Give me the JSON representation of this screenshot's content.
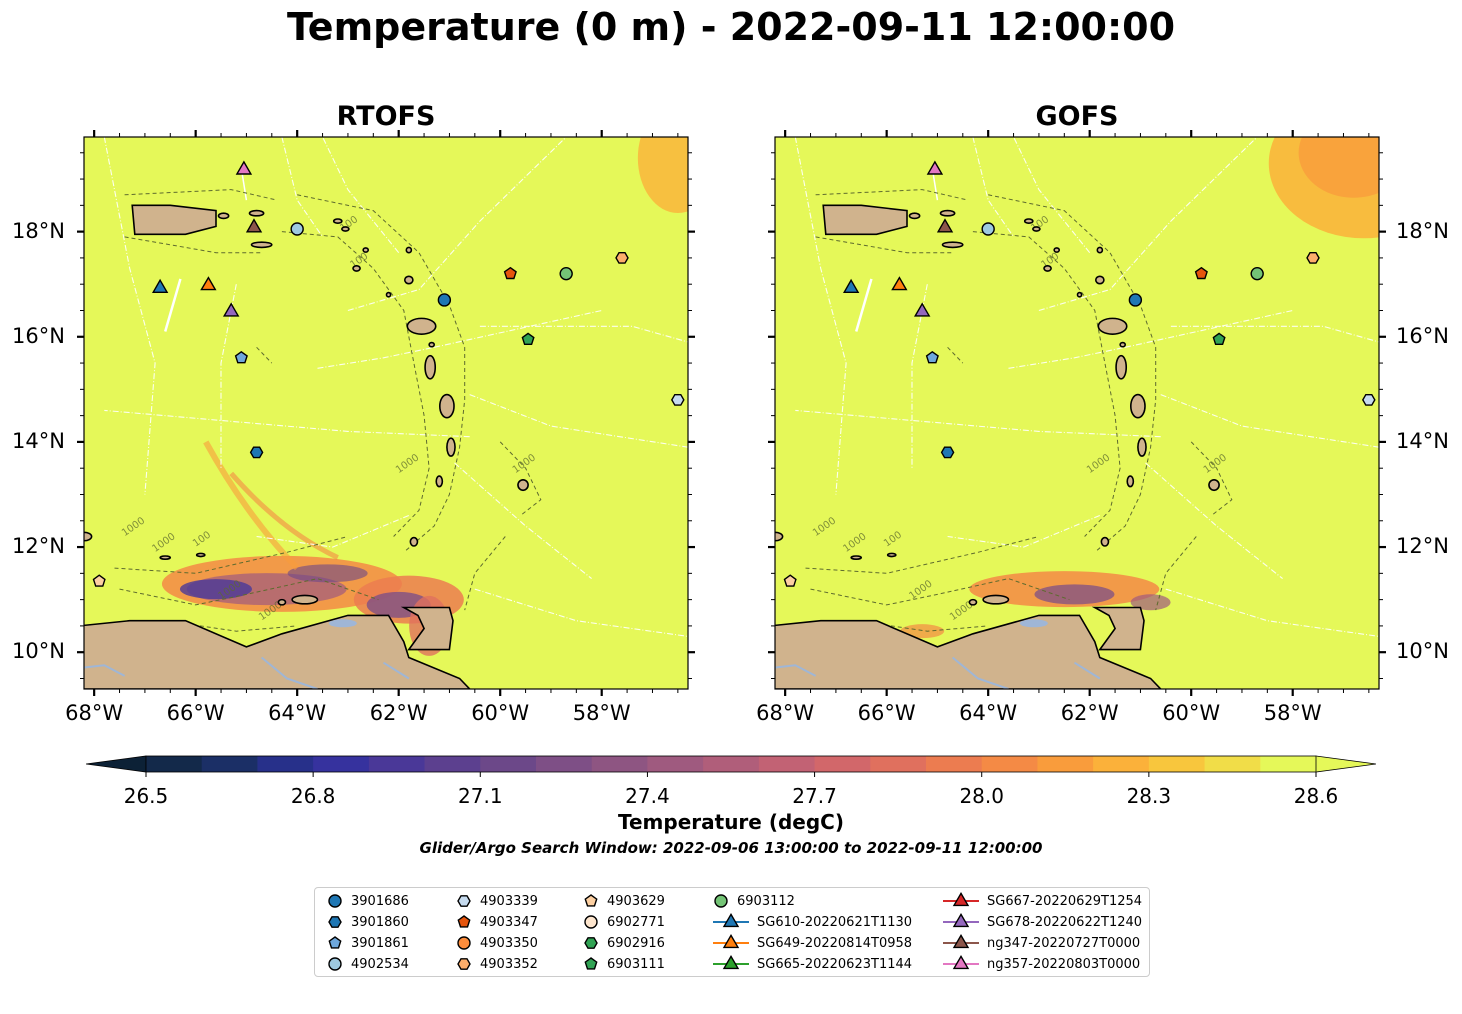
{
  "title": "Temperature (0 m) - 2022-09-11 12:00:00",
  "panels": [
    {
      "id": "rtofs",
      "title": "RTOFS"
    },
    {
      "id": "gofs",
      "title": "GOFS"
    }
  ],
  "map": {
    "lon_range": [
      -68.2,
      -56.3
    ],
    "lat_range": [
      9.3,
      19.8
    ],
    "lon_ticks": [
      -68,
      -66,
      -64,
      -62,
      -60,
      -58
    ],
    "lon_tick_labels": [
      "68°W",
      "66°W",
      "64°W",
      "62°W",
      "60°W",
      "58°W"
    ],
    "lat_ticks": [
      10,
      12,
      14,
      16,
      18
    ],
    "lat_tick_labels": [
      "10°N",
      "12°N",
      "14°N",
      "16°N",
      "18°N"
    ],
    "contour_labels": [
      "100",
      "1000"
    ],
    "colors": {
      "ocean": "#e5f859",
      "land": "#d0b38d",
      "coast": "#000000",
      "bathy": "#5e6b2e",
      "eez": "#ffffff",
      "rivers": "#9fb6d6"
    }
  },
  "colorbar": {
    "label": "Temperature (degC)",
    "min": 26.5,
    "max": 28.6,
    "step": 0.1,
    "ticks": [
      26.5,
      26.8,
      27.1,
      27.4,
      27.7,
      28.0,
      28.3,
      28.6
    ],
    "tick_labels": [
      "26.5",
      "26.8",
      "27.1",
      "27.4",
      "27.7",
      "28.0",
      "28.3",
      "28.6"
    ],
    "extend": "both",
    "colors": [
      "#0c2136",
      "#13294a",
      "#1b2f66",
      "#27308a",
      "#36329e",
      "#4a3898",
      "#5c408f",
      "#6c4889",
      "#7e4f86",
      "#8e5582",
      "#9f5a7f",
      "#b05e7a",
      "#c26274",
      "#d2676a",
      "#e0705e",
      "#ec7c50",
      "#f48a45",
      "#f99c3c",
      "#fbb13a",
      "#f8c63d",
      "#f1dd48",
      "#e5f859"
    ]
  },
  "search_window": "Glider/Argo Search Window: 2022-09-06 13:00:00 to 2022-09-11 12:00:00",
  "observations": [
    {
      "label": "3901686",
      "marker": "circle",
      "color": "#1f77b4",
      "lon": -61.1,
      "lat": 16.7
    },
    {
      "label": "3901860",
      "marker": "hexagon",
      "color": "#1f77b4",
      "lon": -64.8,
      "lat": 13.8
    },
    {
      "label": "3901861",
      "marker": "pentagon",
      "color": "#6fa8dc",
      "lon": -65.1,
      "lat": 15.6
    },
    {
      "label": "4902534",
      "marker": "circle",
      "color": "#9ecae1",
      "lon": -64.0,
      "lat": 18.05
    },
    {
      "label": "4903339",
      "marker": "hexagon",
      "color": "#c6dbef",
      "lon": -56.5,
      "lat": 14.8
    },
    {
      "label": "4903347",
      "marker": "pentagon",
      "color": "#e6550d",
      "lon": -59.8,
      "lat": 17.2
    },
    {
      "label": "4903350",
      "marker": "circle",
      "color": "#fd8d3c",
      "lon": null,
      "lat": null
    },
    {
      "label": "4903352",
      "marker": "hexagon",
      "color": "#fdae6b",
      "lon": -57.6,
      "lat": 17.5
    },
    {
      "label": "4903629",
      "marker": "pentagon",
      "color": "#fdd0a2",
      "lon": -67.9,
      "lat": 11.35
    },
    {
      "label": "6902771",
      "marker": "circle",
      "color": "#fee6ce",
      "lon": null,
      "lat": null
    },
    {
      "label": "6902916",
      "marker": "hexagon",
      "color": "#31a354",
      "lon": null,
      "lat": null
    },
    {
      "label": "6903111",
      "marker": "pentagon",
      "color": "#31a354",
      "lon": -59.45,
      "lat": 15.95
    },
    {
      "label": "6903112",
      "marker": "circle",
      "color": "#74c476",
      "lon": -58.7,
      "lat": 17.2
    },
    {
      "label": "SG610-20220621T1130",
      "marker": "triangle",
      "color": "#1f77b4",
      "line": "#1f77b4",
      "lon": -66.7,
      "lat": 16.95
    },
    {
      "label": "SG649-20220814T0958",
      "marker": "triangle",
      "color": "#ff7f0e",
      "line": "#ff7f0e",
      "lon": -65.75,
      "lat": 17.0
    },
    {
      "label": "SG665-20220623T1144",
      "marker": "triangle",
      "color": "#2ca02c",
      "line": "#2ca02c",
      "lon": null,
      "lat": null
    },
    {
      "label": "SG667-20220629T1254",
      "marker": "triangle",
      "color": "#d62728",
      "line": "#d62728",
      "lon": null,
      "lat": null
    },
    {
      "label": "SG678-20220622T1240",
      "marker": "triangle",
      "color": "#9467bd",
      "line": "#9467bd",
      "lon": -65.3,
      "lat": 16.5
    },
    {
      "label": "ng347-20220727T0000",
      "marker": "triangle",
      "color": "#8c564b",
      "line": "#8c564b",
      "lon": -64.85,
      "lat": 18.1
    },
    {
      "label": "ng357-20220803T0000",
      "marker": "triangle",
      "color": "#e377c2",
      "line": "#e377c2",
      "lon": -65.05,
      "lat": 19.2
    }
  ]
}
